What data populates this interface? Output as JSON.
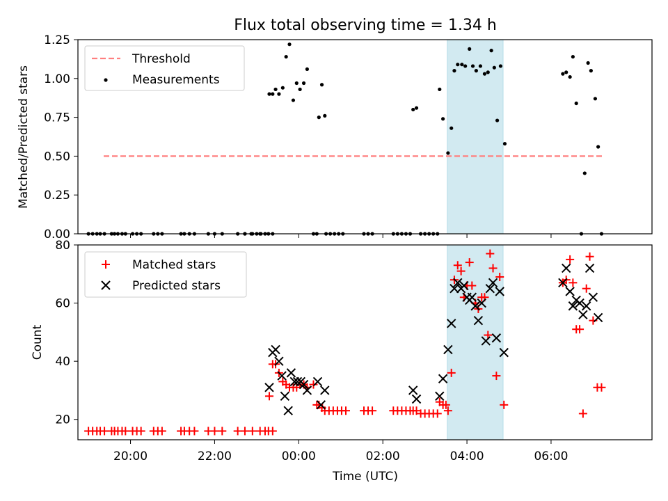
{
  "chart_data": [
    {
      "type": "scatter",
      "title": "Flux total observing time = 1.34 h",
      "xlabel": "",
      "ylabel": "Matched/Predicted stars",
      "xaxis": "time (UTC) hours relative to midnight, shared with lower panel",
      "xlim": [
        -5.25,
        8.4
      ],
      "ylim": [
        0,
        1.25
      ],
      "yticks": [
        "0.00",
        "0.25",
        "0.50",
        "0.75",
        "1.00",
        "1.25"
      ],
      "highlight_span": {
        "x0": 3.53,
        "x1": 4.86,
        "color": "#add8e6"
      },
      "legend": {
        "placement": "top-left",
        "entries": [
          "Threshold",
          "Measurements"
        ]
      },
      "series": [
        {
          "name": "Threshold",
          "kind": "dashed-line",
          "color": "#ff7f7f",
          "x": [
            -5.25,
            7.25
          ],
          "y": [
            0.5,
            0.5
          ]
        },
        {
          "name": "Measurements",
          "kind": "dots",
          "color": "#000000",
          "points": [
            [
              -5.0,
              0
            ],
            [
              -4.9,
              0
            ],
            [
              -4.8,
              0
            ],
            [
              -4.72,
              0
            ],
            [
              -4.62,
              0
            ],
            [
              -4.45,
              0
            ],
            [
              -4.38,
              0
            ],
            [
              -4.3,
              0
            ],
            [
              -4.2,
              0
            ],
            [
              -4.12,
              0
            ],
            [
              -3.95,
              0
            ],
            [
              -3.85,
              0
            ],
            [
              -3.75,
              0
            ],
            [
              -3.45,
              0
            ],
            [
              -3.35,
              0
            ],
            [
              -3.25,
              0
            ],
            [
              -2.8,
              0
            ],
            [
              -2.72,
              0
            ],
            [
              -2.6,
              0
            ],
            [
              -2.48,
              0
            ],
            [
              -2.15,
              0
            ],
            [
              -2.0,
              0
            ],
            [
              -1.82,
              0
            ],
            [
              -1.45,
              0
            ],
            [
              -1.28,
              0
            ],
            [
              -1.1,
              0
            ],
            [
              -0.92,
              0
            ],
            [
              -1.28,
              0
            ],
            [
              -1.13,
              0
            ],
            [
              -1.0,
              0
            ],
            [
              -0.9,
              0
            ],
            [
              -0.8,
              0
            ],
            [
              -0.72,
              0
            ],
            [
              -0.62,
              0
            ],
            [
              -0.7,
              0.9
            ],
            [
              -0.62,
              0.9
            ],
            [
              -0.55,
              0.93
            ],
            [
              -0.47,
              0.9
            ],
            [
              -0.38,
              0.94
            ],
            [
              -0.3,
              1.14
            ],
            [
              -0.22,
              1.22
            ],
            [
              -0.13,
              0.86
            ],
            [
              -0.05,
              0.97
            ],
            [
              0.03,
              0.93
            ],
            [
              0.12,
              0.97
            ],
            [
              0.2,
              1.06
            ],
            [
              0.35,
              0
            ],
            [
              0.43,
              0
            ],
            [
              0.48,
              0.75
            ],
            [
              0.55,
              0.96
            ],
            [
              0.62,
              0.76
            ],
            [
              0.65,
              0
            ],
            [
              0.75,
              0
            ],
            [
              0.85,
              0
            ],
            [
              0.95,
              0
            ],
            [
              1.05,
              0
            ],
            [
              1.55,
              0
            ],
            [
              1.65,
              0
            ],
            [
              1.75,
              0
            ],
            [
              2.25,
              0
            ],
            [
              2.35,
              0
            ],
            [
              2.45,
              0
            ],
            [
              2.55,
              0
            ],
            [
              2.65,
              0
            ],
            [
              2.72,
              0.8
            ],
            [
              2.8,
              0.81
            ],
            [
              2.9,
              0
            ],
            [
              3.0,
              0
            ],
            [
              3.1,
              0
            ],
            [
              3.2,
              0
            ],
            [
              3.3,
              0
            ],
            [
              3.35,
              0.93
            ],
            [
              3.43,
              0.74
            ],
            [
              3.55,
              0.52
            ],
            [
              3.63,
              0.68
            ],
            [
              3.7,
              1.05
            ],
            [
              3.78,
              1.09
            ],
            [
              3.88,
              1.09
            ],
            [
              3.96,
              1.08
            ],
            [
              4.06,
              1.19
            ],
            [
              4.14,
              1.08
            ],
            [
              4.22,
              1.05
            ],
            [
              4.32,
              1.08
            ],
            [
              4.42,
              1.03
            ],
            [
              4.5,
              1.04
            ],
            [
              4.58,
              1.18
            ],
            [
              4.65,
              1.07
            ],
            [
              4.72,
              0.73
            ],
            [
              4.8,
              1.08
            ],
            [
              4.9,
              0.58
            ],
            [
              6.28,
              1.03
            ],
            [
              6.36,
              1.04
            ],
            [
              6.45,
              1.01
            ],
            [
              6.52,
              1.14
            ],
            [
              6.6,
              0.84
            ],
            [
              6.72,
              0
            ],
            [
              6.8,
              0.39
            ],
            [
              6.88,
              1.1
            ],
            [
              6.95,
              1.05
            ],
            [
              7.05,
              0.87
            ],
            [
              7.12,
              0.56
            ],
            [
              7.2,
              0
            ]
          ]
        }
      ]
    },
    {
      "type": "scatter",
      "title": "",
      "xlabel": "Time (UTC)",
      "ylabel": "Count",
      "xlim": [
        -5.25,
        8.4
      ],
      "ylim": [
        13,
        80
      ],
      "yticks": [
        "20",
        "40",
        "60",
        "80"
      ],
      "xticks": [
        "20:00",
        "22:00",
        "00:00",
        "02:00",
        "04:00",
        "06:00"
      ],
      "highlight_span": {
        "x0": 3.53,
        "x1": 4.86,
        "color": "#add8e6"
      },
      "legend": {
        "placement": "top-left",
        "entries": [
          "Matched stars",
          "Predicted stars"
        ]
      },
      "series": [
        {
          "name": "Matched stars",
          "marker": "plus",
          "color": "#ff0000",
          "points": [
            [
              -5.0,
              16
            ],
            [
              -4.9,
              16
            ],
            [
              -4.8,
              16
            ],
            [
              -4.72,
              16
            ],
            [
              -4.62,
              16
            ],
            [
              -4.45,
              16
            ],
            [
              -4.38,
              16
            ],
            [
              -4.3,
              16
            ],
            [
              -4.2,
              16
            ],
            [
              -4.12,
              16
            ],
            [
              -3.95,
              16
            ],
            [
              -3.85,
              16
            ],
            [
              -3.75,
              16
            ],
            [
              -3.45,
              16
            ],
            [
              -3.35,
              16
            ],
            [
              -3.25,
              16
            ],
            [
              -2.8,
              16
            ],
            [
              -2.72,
              16
            ],
            [
              -2.6,
              16
            ],
            [
              -2.48,
              16
            ],
            [
              -2.15,
              16
            ],
            [
              -2.0,
              16
            ],
            [
              -1.82,
              16
            ],
            [
              -1.45,
              16
            ],
            [
              -1.28,
              16
            ],
            [
              -1.1,
              16
            ],
            [
              -0.92,
              16
            ],
            [
              -0.8,
              16
            ],
            [
              -0.72,
              16
            ],
            [
              -0.62,
              16
            ],
            [
              -0.7,
              28
            ],
            [
              -0.62,
              39
            ],
            [
              -0.55,
              39
            ],
            [
              -0.47,
              36
            ],
            [
              -0.38,
              33
            ],
            [
              -0.3,
              32
            ],
            [
              -0.22,
              31
            ],
            [
              -0.13,
              31
            ],
            [
              -0.05,
              31
            ],
            [
              0.03,
              32
            ],
            [
              0.12,
              32
            ],
            [
              0.2,
              31
            ],
            [
              0.35,
              32
            ],
            [
              0.43,
              25
            ],
            [
              0.48,
              25
            ],
            [
              0.55,
              24
            ],
            [
              0.62,
              23
            ],
            [
              0.72,
              23
            ],
            [
              0.82,
              23
            ],
            [
              0.92,
              23
            ],
            [
              1.02,
              23
            ],
            [
              1.12,
              23
            ],
            [
              1.55,
              23
            ],
            [
              1.65,
              23
            ],
            [
              1.75,
              23
            ],
            [
              2.25,
              23
            ],
            [
              2.35,
              23
            ],
            [
              2.45,
              23
            ],
            [
              2.55,
              23
            ],
            [
              2.65,
              23
            ],
            [
              2.72,
              23
            ],
            [
              2.8,
              23
            ],
            [
              2.9,
              22
            ],
            [
              3.0,
              22
            ],
            [
              3.1,
              22
            ],
            [
              3.2,
              22
            ],
            [
              3.3,
              22
            ],
            [
              3.35,
              26
            ],
            [
              3.43,
              25
            ],
            [
              3.5,
              25
            ],
            [
              3.55,
              23
            ],
            [
              3.63,
              36
            ],
            [
              3.7,
              68
            ],
            [
              3.78,
              73
            ],
            [
              3.86,
              71
            ],
            [
              3.93,
              62
            ],
            [
              4.0,
              66
            ],
            [
              4.06,
              74
            ],
            [
              4.12,
              66
            ],
            [
              4.2,
              60
            ],
            [
              4.27,
              58
            ],
            [
              4.35,
              62
            ],
            [
              4.42,
              62
            ],
            [
              4.5,
              49
            ],
            [
              4.55,
              77
            ],
            [
              4.62,
              72
            ],
            [
              4.7,
              35
            ],
            [
              4.78,
              69
            ],
            [
              4.88,
              25
            ],
            [
              6.28,
              67
            ],
            [
              6.36,
              68
            ],
            [
              6.45,
              75
            ],
            [
              6.52,
              67
            ],
            [
              6.6,
              51
            ],
            [
              6.68,
              51
            ],
            [
              6.76,
              22
            ],
            [
              6.84,
              65
            ],
            [
              6.92,
              76
            ],
            [
              7.0,
              54
            ],
            [
              7.1,
              31
            ],
            [
              7.2,
              31
            ]
          ]
        },
        {
          "name": "Predicted stars",
          "marker": "x",
          "color": "#000000",
          "points": [
            [
              -0.7,
              31
            ],
            [
              -0.62,
              43
            ],
            [
              -0.55,
              44
            ],
            [
              -0.47,
              40
            ],
            [
              -0.4,
              35
            ],
            [
              -0.33,
              28
            ],
            [
              -0.25,
              23
            ],
            [
              -0.18,
              36
            ],
            [
              -0.1,
              33
            ],
            [
              -0.03,
              33
            ],
            [
              0.05,
              33
            ],
            [
              0.12,
              32
            ],
            [
              0.2,
              30
            ],
            [
              0.45,
              33
            ],
            [
              0.53,
              25
            ],
            [
              0.62,
              30
            ],
            [
              2.72,
              30
            ],
            [
              2.8,
              27
            ],
            [
              3.35,
              28
            ],
            [
              3.43,
              34
            ],
            [
              3.55,
              44
            ],
            [
              3.63,
              53
            ],
            [
              3.7,
              65
            ],
            [
              3.78,
              67
            ],
            [
              3.86,
              65
            ],
            [
              3.93,
              66
            ],
            [
              4.0,
              62
            ],
            [
              4.06,
              61
            ],
            [
              4.12,
              62
            ],
            [
              4.2,
              59
            ],
            [
              4.27,
              54
            ],
            [
              4.35,
              60
            ],
            [
              4.45,
              47
            ],
            [
              4.55,
              65
            ],
            [
              4.62,
              67
            ],
            [
              4.7,
              48
            ],
            [
              4.78,
              64
            ],
            [
              4.88,
              43
            ],
            [
              6.28,
              67
            ],
            [
              6.36,
              72
            ],
            [
              6.45,
              64
            ],
            [
              6.52,
              59
            ],
            [
              6.6,
              61
            ],
            [
              6.68,
              60
            ],
            [
              6.76,
              56
            ],
            [
              6.84,
              59
            ],
            [
              6.92,
              72
            ],
            [
              7.0,
              62
            ],
            [
              7.12,
              55
            ]
          ]
        }
      ]
    }
  ]
}
